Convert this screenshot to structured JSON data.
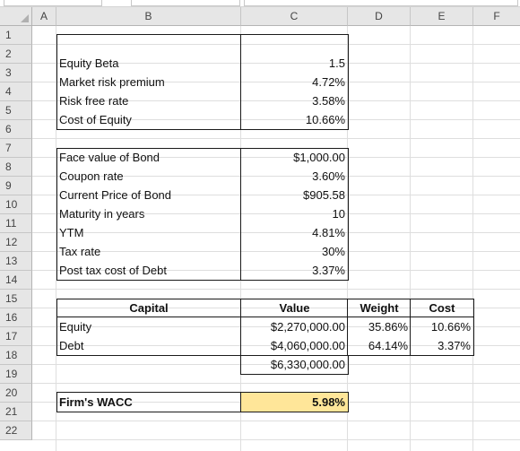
{
  "columns": [
    "A",
    "B",
    "C",
    "D",
    "E",
    "F"
  ],
  "rows": [
    "1",
    "2",
    "3",
    "4",
    "5",
    "6",
    "7",
    "8",
    "9",
    "10",
    "11",
    "12",
    "13",
    "14",
    "15",
    "16",
    "17",
    "18",
    "19",
    "20",
    "21",
    "22"
  ],
  "equity": {
    "beta_label": "Equity Beta",
    "beta_value": "1.5",
    "mrp_label": "Market risk premium",
    "mrp_value": "4.72%",
    "rf_label": "Risk free rate",
    "rf_value": "3.58%",
    "coe_label": "Cost of Equity",
    "coe_value": "10.66%"
  },
  "debt": {
    "face_label": "Face value of Bond",
    "face_value": "$1,000.00",
    "coupon_label": "Coupon rate",
    "coupon_value": "3.60%",
    "price_label": "Current Price of Bond",
    "price_value": "$905.58",
    "maturity_label": "Maturity in years",
    "maturity_value": "10",
    "ytm_label": "YTM",
    "ytm_value": "4.81%",
    "tax_label": "Tax rate",
    "tax_value": "30%",
    "ptcod_label": "Post tax cost of Debt",
    "ptcod_value": "3.37%"
  },
  "capital": {
    "header_capital": "Capital",
    "header_value": "Value",
    "header_weight": "Weight",
    "header_cost": "Cost",
    "equity_label": "Equity",
    "equity_value": "$2,270,000.00",
    "equity_weight": "35.86%",
    "equity_cost": "10.66%",
    "debt_label": "Debt",
    "debt_value": "$4,060,000.00",
    "debt_weight": "64.14%",
    "debt_cost": "3.37%",
    "total_value": "$6,330,000.00"
  },
  "wacc": {
    "label": "Firm's WACC",
    "value": "5.98%",
    "highlight": "#ffe699"
  }
}
